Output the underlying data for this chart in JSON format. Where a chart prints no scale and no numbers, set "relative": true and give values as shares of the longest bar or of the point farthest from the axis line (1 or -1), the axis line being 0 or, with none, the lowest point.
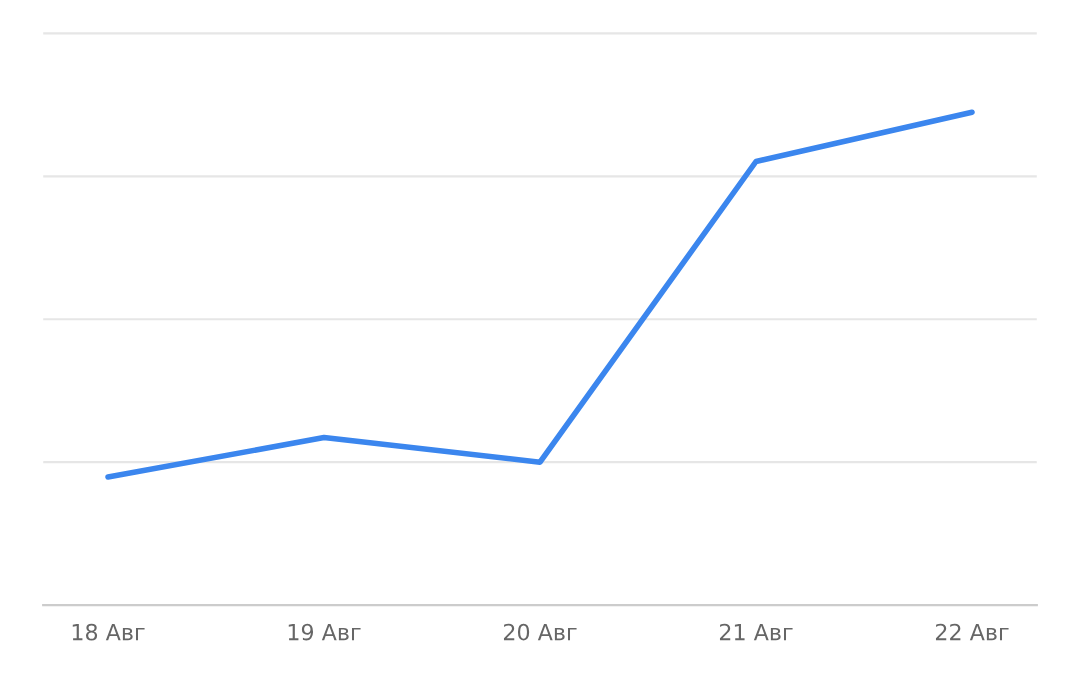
{
  "chart_data": {
    "type": "line",
    "relative": true,
    "categories": [
      "18 Авг",
      "19 Авг",
      "20 Авг",
      "21 Авг",
      "22 Авг"
    ],
    "series": [
      {
        "color": "#3b86ee",
        "values": [
          0.26,
          0.34,
          0.29,
          0.9,
          1
        ]
      }
    ],
    "grid": "y",
    "marker": "none",
    "line_style": "solid"
  }
}
